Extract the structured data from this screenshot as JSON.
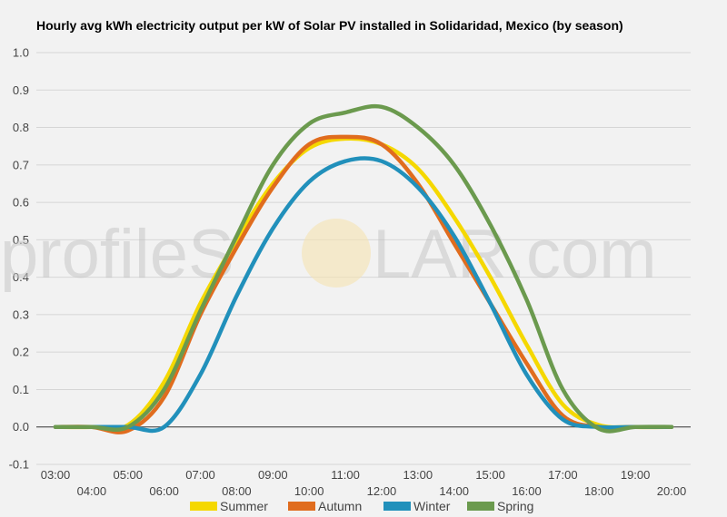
{
  "chart_data": {
    "type": "line",
    "title": "Hourly avg kWh electricity output per kW of Solar PV installed in Solidaridad, Mexico (by season)",
    "xlabel": "",
    "ylabel": "",
    "ylim": [
      -0.1,
      1.0
    ],
    "yticks": [
      -0.1,
      0.0,
      0.1,
      0.2,
      0.3,
      0.4,
      0.5,
      0.6,
      0.7,
      0.8,
      0.9,
      1.0
    ],
    "ytick_labels": [
      "-0.1",
      "0.0",
      "0.1",
      "0.2",
      "0.3",
      "0.4",
      "0.5",
      "0.6",
      "0.7",
      "0.8",
      "0.9",
      "1.0"
    ],
    "x": [
      "03:00",
      "04:00",
      "05:00",
      "06:00",
      "07:00",
      "08:00",
      "09:00",
      "10:00",
      "11:00",
      "12:00",
      "13:00",
      "14:00",
      "15:00",
      "16:00",
      "17:00",
      "18:00",
      "19:00",
      "20:00"
    ],
    "grid": true,
    "legend_position": "bottom",
    "series": [
      {
        "name": "Summer",
        "color": "#f5d800",
        "values": [
          0.0,
          0.0,
          0.005,
          0.12,
          0.33,
          0.5,
          0.65,
          0.745,
          0.77,
          0.755,
          0.69,
          0.56,
          0.4,
          0.22,
          0.06,
          0.005,
          0.0,
          0.0
        ]
      },
      {
        "name": "Autumn",
        "color": "#e06c1e",
        "values": [
          0.0,
          0.0,
          -0.01,
          0.08,
          0.3,
          0.48,
          0.64,
          0.755,
          0.775,
          0.755,
          0.65,
          0.49,
          0.33,
          0.17,
          0.03,
          0.0,
          0.0,
          0.0
        ]
      },
      {
        "name": "Winter",
        "color": "#2190bb",
        "values": [
          0.0,
          0.0,
          0.0,
          0.0,
          0.14,
          0.35,
          0.53,
          0.655,
          0.71,
          0.71,
          0.64,
          0.51,
          0.33,
          0.14,
          0.02,
          0.0,
          0.0,
          0.0
        ]
      },
      {
        "name": "Spring",
        "color": "#6b9a4e",
        "values": [
          0.0,
          0.0,
          0.0,
          0.1,
          0.31,
          0.51,
          0.7,
          0.81,
          0.84,
          0.855,
          0.8,
          0.7,
          0.54,
          0.34,
          0.1,
          -0.005,
          0.0,
          0.0
        ]
      }
    ]
  },
  "watermark": {
    "before": "profileS",
    "after": "LAR.com"
  }
}
